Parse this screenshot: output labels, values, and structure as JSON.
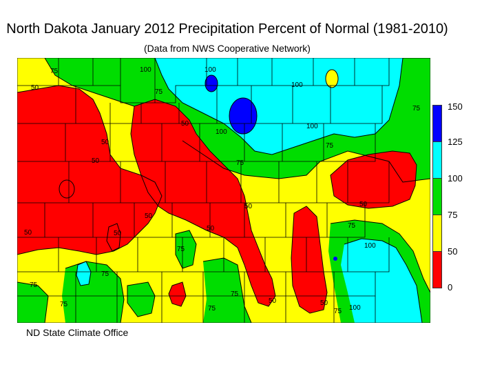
{
  "title": "North Dakota January 2012 Precipitation Percent of Normal (1981-2010)",
  "subtitle": "(Data from NWS Cooperative Network)",
  "footer": "ND State Climate Office",
  "legend": {
    "ticks": [
      "150",
      "125",
      "100",
      "75",
      "50",
      "0"
    ],
    "bins": [
      {
        "range": "125-150",
        "color": "#0000ff"
      },
      {
        "range": "100-125",
        "color": "#00ffff"
      },
      {
        "range": "75-100",
        "color": "#00dd00"
      },
      {
        "range": "50-75",
        "color": "#ffff00"
      },
      {
        "range": "0-50",
        "color": "#ff0000"
      }
    ]
  },
  "contour_labels": [
    "75",
    "50",
    "100",
    "100",
    "100",
    "75",
    "50",
    "50",
    "50",
    "100",
    "75",
    "75",
    "50",
    "50",
    "50",
    "75",
    "75",
    "75",
    "50",
    "75",
    "75",
    "50",
    "100",
    "50",
    "75",
    "100",
    "50",
    "75",
    "75",
    "50",
    "100",
    "75"
  ],
  "colors": {
    "red": "#ff0000",
    "yellow": "#ffff00",
    "green": "#00dd00",
    "cyan": "#00ffff",
    "blue": "#0000ff"
  }
}
